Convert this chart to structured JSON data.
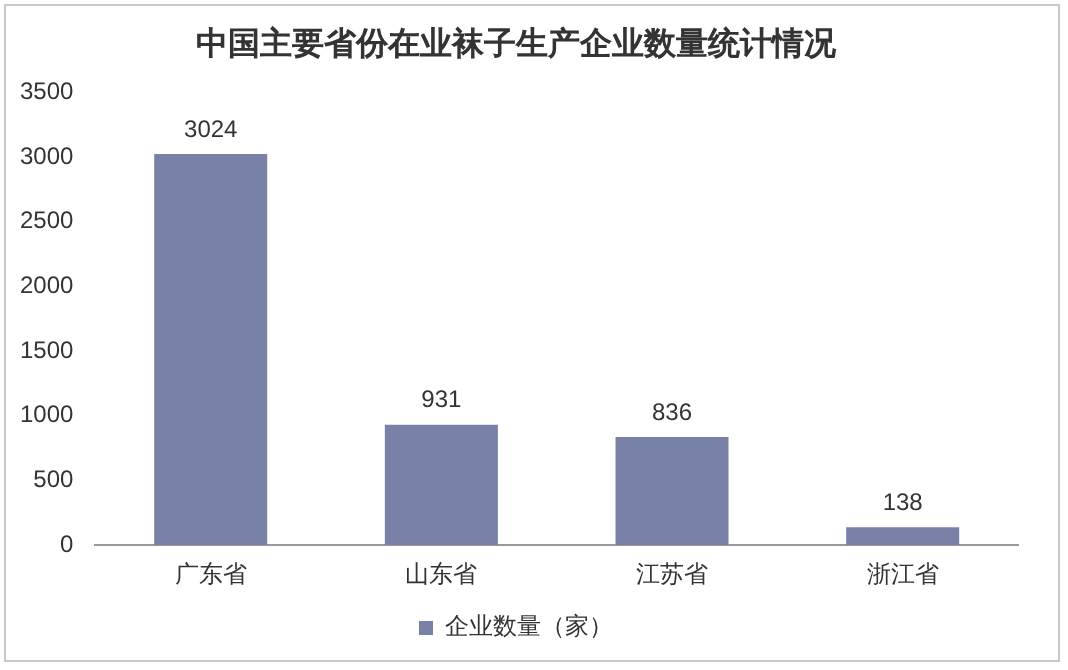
{
  "chart_data": {
    "type": "bar",
    "title": "中国主要省份在业袜子生产企业数量统计情况",
    "categories": [
      "广东省",
      "山东省",
      "江苏省",
      "浙江省"
    ],
    "series": [
      {
        "name": "企业数量（家）",
        "color": "#7a81a6",
        "values": [
          3024,
          931,
          836,
          138
        ]
      }
    ],
    "ylim": [
      0,
      3500
    ],
    "yticks": [
      0,
      500,
      1000,
      1500,
      2000,
      2500,
      3000,
      3500
    ],
    "grid": false,
    "legend": "bottom",
    "data_labels": true
  }
}
